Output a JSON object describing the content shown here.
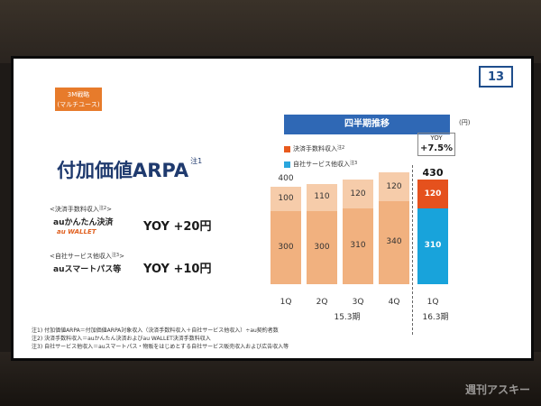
{
  "slide": {
    "page_number": "13",
    "strategy_badge": [
      "3M戦略",
      "(マルチユース)"
    ],
    "title": "付加価値ARPA",
    "title_note": "注1"
  },
  "left_panel": {
    "rows": [
      {
        "label": "<決済手数料収入",
        "note": "注2",
        "label_end": ">",
        "brand": "auかんたん決済",
        "brand2": "au WALLET",
        "yoy": "YOY +20円"
      },
      {
        "label": "<自社サービス他収入",
        "note": "注3",
        "label_end": ">",
        "brand": "auスマートパス等",
        "yoy": "YOY +10円"
      }
    ]
  },
  "chart_header": {
    "title": "四半期推移",
    "unit": "(円)",
    "legend": [
      {
        "label": "決済手数料収入",
        "note": "注2",
        "color": "#e85a1d"
      },
      {
        "label": "自社サービス他収入",
        "note": "注3",
        "color": "#2aa6dd"
      }
    ],
    "yoy_label": "YOY",
    "yoy_value": "+7.5%",
    "periods": [
      "15.3期",
      "16.3期"
    ]
  },
  "chart_data": {
    "type": "bar",
    "stacked": true,
    "categories": [
      "1Q",
      "2Q",
      "3Q",
      "4Q",
      "1Q"
    ],
    "series": [
      {
        "name": "自社サービス他収入",
        "values": [
          300,
          300,
          310,
          340,
          310
        ]
      },
      {
        "name": "決済手数料収入",
        "values": [
          100,
          110,
          120,
          120,
          120
        ]
      }
    ],
    "totals": [
      "400",
      "",
      "",
      "",
      "430"
    ],
    "highlighted_index": 4,
    "colors": {
      "base": "#f1b17f",
      "top": "#f6ccaa",
      "highlight_base": "#18a3db",
      "highlight_top": "#e5511d"
    }
  },
  "footnotes": [
    "注1) 付加価値ARPA＝付加価値ARPA対象収入（決済手数料収入＋自社サービス他収入）÷au契約者数",
    "注2) 決済手数料収入＝auかんたん決済およびau WALLET決済手数料収入",
    "注3) 自社サービス他収入＝auスマートパス・物販をはじめとする自社サービス販売収入および広告収入等"
  ],
  "watermark": "週刊アスキー"
}
